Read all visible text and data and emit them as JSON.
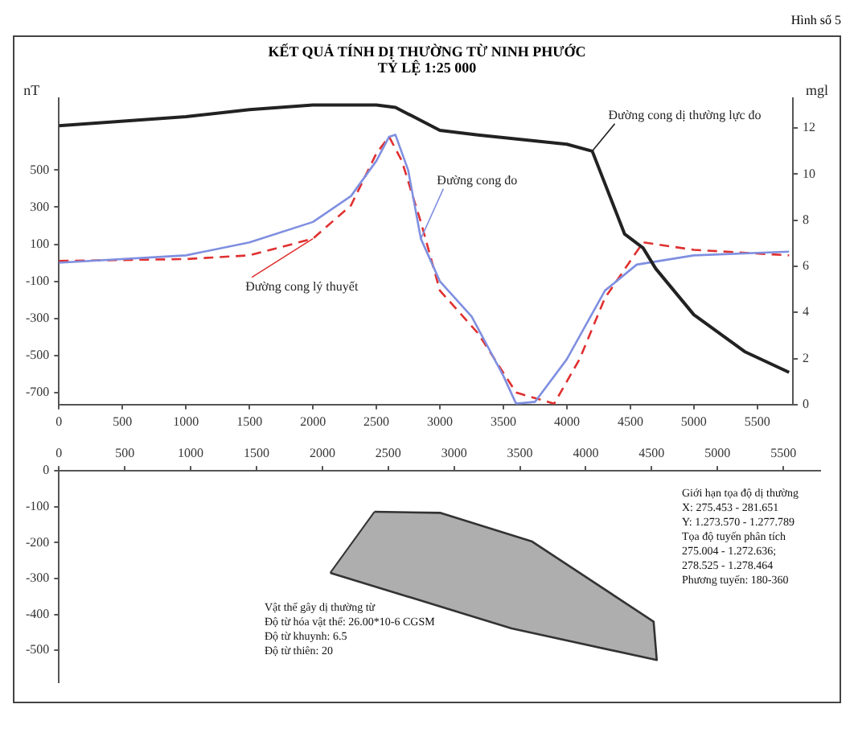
{
  "chart_data": [
    {
      "type": "line",
      "title": "KẾT QUẢ TÍNH DỊ THƯỜNG TỪ NINH PHƯỚC",
      "subtitle": "TỶ LỆ 1:25 000",
      "ylabel": "nT",
      "y2label": "mgl",
      "annotations": [
        "Hình số 5"
      ],
      "xlim": [
        0,
        5780
      ],
      "xticks": [
        0,
        500,
        1000,
        1500,
        2000,
        2500,
        3000,
        3500,
        4000,
        4500,
        5000,
        5500
      ],
      "ylim": [
        -765,
        888
      ],
      "yticks": [
        500,
        300,
        100,
        -100,
        -300,
        -500,
        -700
      ],
      "y2lim": [
        0,
        13.3
      ],
      "y2ticks": [
        0,
        2,
        4,
        6,
        8,
        10,
        12
      ],
      "grid": false,
      "legend": false,
      "marker": "none",
      "series": [
        {
          "name": "Đường cong dị thường lực đo",
          "color": "#222222",
          "axis": "y2",
          "line_style": "solid",
          "x": [
            0,
            1000,
            1500,
            2000,
            2500,
            2650,
            3000,
            3300,
            4000,
            4200,
            4455,
            4600,
            4700,
            5000,
            5400,
            5750
          ],
          "values": [
            12.1,
            12.5,
            12.8,
            13.0,
            13.0,
            12.9,
            11.9,
            11.7,
            11.3,
            11.0,
            7.4,
            6.8,
            5.9,
            3.9,
            2.3,
            1.4
          ]
        },
        {
          "name": "Đường cong đo",
          "color": "#7f8fe0",
          "line_style": "solid",
          "x": [
            0,
            1000,
            1500,
            2000,
            2300,
            2500,
            2600,
            2650,
            2750,
            2850,
            3000,
            3250,
            3500,
            3600,
            3750,
            4000,
            4300,
            4550,
            5000,
            5750
          ],
          "values": [
            0,
            40,
            110,
            220,
            360,
            550,
            680,
            690,
            500,
            130,
            -100,
            -290,
            -610,
            -760,
            -750,
            -520,
            -150,
            -10,
            40,
            60
          ]
        },
        {
          "name": "Đường cong lý thuyết",
          "color": "#e03030",
          "line_style": "dashed",
          "x": [
            0,
            1000,
            1500,
            2000,
            2300,
            2500,
            2600,
            2700,
            2850,
            3000,
            3300,
            3600,
            3900,
            4100,
            4300,
            4600,
            5000,
            5750
          ],
          "values": [
            10,
            20,
            40,
            130,
            310,
            590,
            680,
            550,
            220,
            -150,
            -380,
            -700,
            -760,
            -520,
            -190,
            110,
            70,
            40
          ]
        }
      ]
    },
    {
      "type": "area",
      "xlim": [
        0,
        5780
      ],
      "xticks": [
        0,
        500,
        1000,
        1500,
        2000,
        2500,
        3000,
        3500,
        4000,
        4500,
        5000,
        5500
      ],
      "ylim": [
        -590,
        0
      ],
      "yticks": [
        0,
        -100,
        -200,
        -300,
        -400,
        -500
      ],
      "grid": false,
      "legend": false,
      "marker": "none",
      "annotations": [
        "Vật thể gây dị thường từ\nĐộ từ hóa vật thể: 26.00*10-6 CGSM\nĐộ từ khuynh: 6.5\nĐộ từ thiên: 20",
        "Giới hạn tọa độ dị thường\nX: 275.453 - 281.651\nY: 1.273.570 - 1.277.789\nTọa độ tuyến phân tích\n275.004 - 1.272.636;\n278.525 - 1.278.464\nPhương tuyến: 180-360"
      ],
      "series": [
        {
          "color": "#9a9a9a",
          "x": [
            2395,
            2898,
            3593,
            4515,
            4539,
            3437,
            2060
          ],
          "values": [
            -114,
            -117,
            -197,
            -420,
            -527,
            -439,
            -284
          ]
        }
      ]
    }
  ]
}
